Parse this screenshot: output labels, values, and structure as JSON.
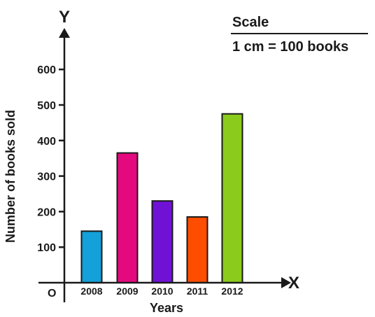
{
  "chart_data": {
    "type": "bar",
    "categories": [
      "2008",
      "2009",
      "2010",
      "2011",
      "2012"
    ],
    "values": [
      145,
      365,
      230,
      185,
      475
    ],
    "colors": [
      "#14a0d8",
      "#e5097f",
      "#7012d6",
      "#ff4d00",
      "#8bcb1c"
    ],
    "xlabel": "Years",
    "ylabel": "Number of books sold",
    "ylim": [
      0,
      600
    ],
    "yticks": [
      100,
      200,
      300,
      400,
      500,
      600
    ],
    "x_axis_letter": "X",
    "y_axis_letter": "Y",
    "origin_label": "O",
    "grid": false
  },
  "scale": {
    "title": "Scale",
    "text": "1 cm = 100 books"
  }
}
